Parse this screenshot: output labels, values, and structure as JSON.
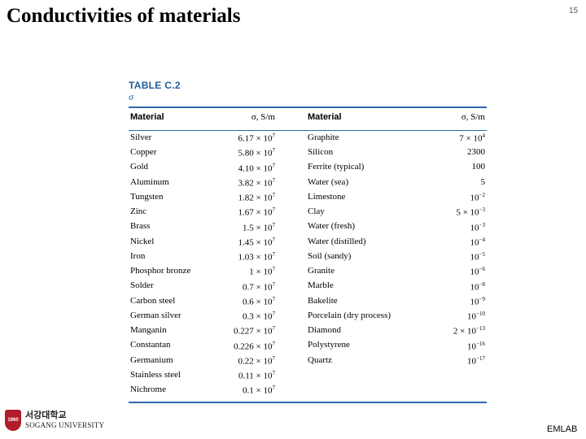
{
  "slide": {
    "title": "Conductivities of materials",
    "page_number": "15",
    "footer": "EMLAB"
  },
  "logo": {
    "korean_name": "서강대학교",
    "english_name": "SOGANG UNIVERSITY",
    "crest_label": "1960"
  },
  "table": {
    "caption": "TABLE C.2",
    "symbol": "σ",
    "headers": {
      "material": "Material",
      "sigma": "σ, S/m"
    },
    "rows": [
      {
        "left_material": "Silver",
        "left_mant": "6.17",
        "left_exp": "7",
        "right_material": "Graphite",
        "right_mant": "7",
        "right_exp": "4"
      },
      {
        "left_material": "Copper",
        "left_mant": "5.80",
        "left_exp": "7",
        "right_material": "Silicon",
        "right_value": "2300"
      },
      {
        "left_material": "Gold",
        "left_mant": "4.10",
        "left_exp": "7",
        "right_material": "Ferrite (typical)",
        "right_value": "100"
      },
      {
        "left_material": "Aluminum",
        "left_mant": "3.82",
        "left_exp": "7",
        "right_material": "Water (sea)",
        "right_value": "5"
      },
      {
        "left_material": "Tungsten",
        "left_mant": "1.82",
        "left_exp": "7",
        "right_material": "Limestone",
        "right_exp": "−2"
      },
      {
        "left_material": "Zinc",
        "left_mant": "1.67",
        "left_exp": "7",
        "right_material": "Clay",
        "right_mant": "5",
        "right_exp": "−3"
      },
      {
        "left_material": "Brass",
        "left_mant": "1.5",
        "left_exp": "7",
        "right_material": "Water (fresh)",
        "right_exp": "−3"
      },
      {
        "left_material": "Nickel",
        "left_mant": "1.45",
        "left_exp": "7",
        "right_material": "Water (distilled)",
        "right_exp": "−4"
      },
      {
        "left_material": "Iron",
        "left_mant": "1.03",
        "left_exp": "7",
        "right_material": "Soil (sandy)",
        "right_exp": "−5"
      },
      {
        "left_material": "Phosphor bronze",
        "left_mant": "1",
        "left_exp": "7",
        "right_material": "Granite",
        "right_exp": "−6"
      },
      {
        "left_material": "Solder",
        "left_mant": "0.7",
        "left_exp": "7",
        "right_material": "Marble",
        "right_exp": "−8"
      },
      {
        "left_material": "Carbon steel",
        "left_mant": "0.6",
        "left_exp": "7",
        "right_material": "Bakelite",
        "right_exp": "−9"
      },
      {
        "left_material": "German silver",
        "left_mant": "0.3",
        "left_exp": "7",
        "right_material": "Porcelain (dry process)",
        "right_exp": "−10"
      },
      {
        "left_material": "Manganin",
        "left_mant": "0.227",
        "left_exp": "7",
        "right_material": "Diamond",
        "right_mant": "2",
        "right_exp": "−13"
      },
      {
        "left_material": "Constantan",
        "left_mant": "0.226",
        "left_exp": "7",
        "right_material": "Polystyrene",
        "right_exp": "−16"
      },
      {
        "left_material": "Germanium",
        "left_mant": "0.22",
        "left_exp": "7",
        "right_material": "Quartz",
        "right_exp": "−17"
      },
      {
        "left_material": "Stainless steel",
        "left_mant": "0.11",
        "left_exp": "7",
        "right_material": "",
        "right_value": ""
      },
      {
        "left_material": "Nichrome",
        "left_mant": "0.1",
        "left_exp": "7",
        "right_material": "",
        "right_value": ""
      }
    ]
  },
  "colors": {
    "caption": "#1f5c9c",
    "rule": "#2b6aad",
    "crest": "#b11c2a"
  }
}
